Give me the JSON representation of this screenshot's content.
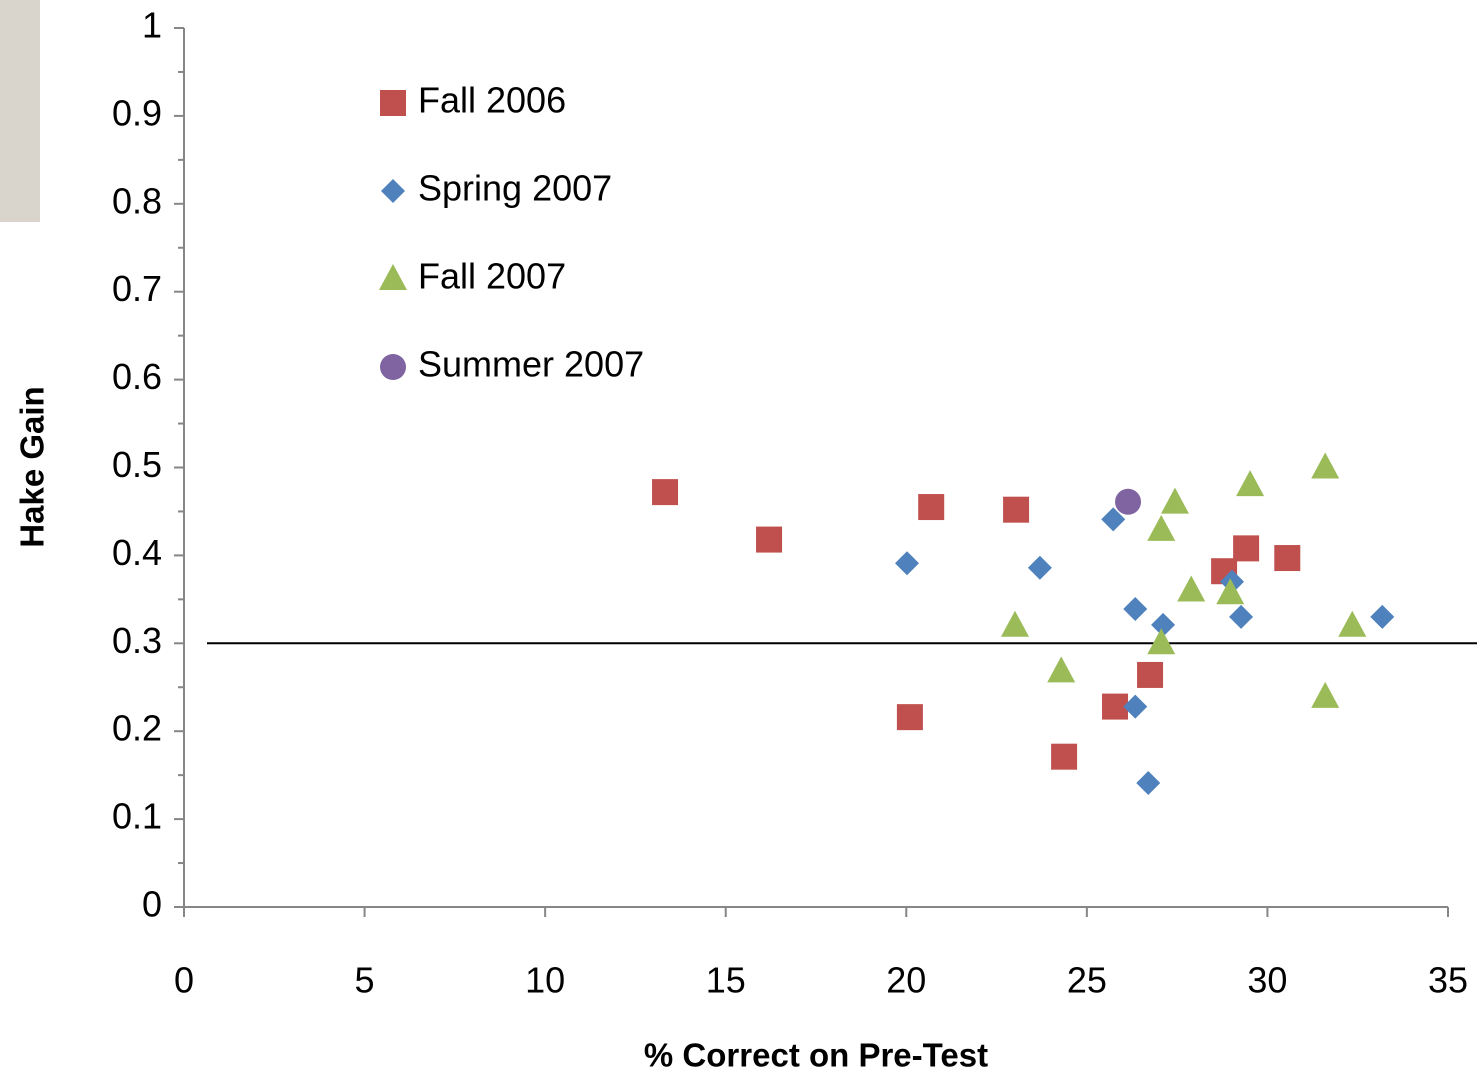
{
  "chart_data": {
    "type": "scatter",
    "xlabel": "% Correct on Pre-Test",
    "ylabel": "Hake Gain",
    "xlim": [
      0,
      35
    ],
    "xticks": [
      0,
      5,
      10,
      15,
      20,
      25,
      30,
      35
    ],
    "ylim": [
      0,
      1
    ],
    "yticks": [
      0,
      0.1,
      0.2,
      0.3,
      0.4,
      0.5,
      0.6,
      0.7,
      0.8,
      0.9,
      1
    ],
    "yminorticks": [
      0.05,
      0.15,
      0.25,
      0.35,
      0.45,
      0.55,
      0.65,
      0.75,
      0.85,
      0.95
    ],
    "hline": 0.3,
    "series": [
      {
        "name": "Fall 2006",
        "color": "#c0504d",
        "marker": "square",
        "x": [
          13.32,
          16.2,
          20.69,
          23.04,
          20.1,
          24.37,
          25.78,
          26.75,
          28.8,
          29.41,
          30.55
        ],
        "values": [
          0.472,
          0.418,
          0.455,
          0.452,
          0.216,
          0.171,
          0.228,
          0.264,
          0.382,
          0.408,
          0.397
        ]
      },
      {
        "name": "Spring 2007",
        "color": "#4f81bd",
        "marker": "diamond",
        "x": [
          20.02,
          23.7,
          25.73,
          26.34,
          27.11,
          26.34,
          26.7,
          29.02,
          29.27,
          33.18
        ],
        "values": [
          0.391,
          0.386,
          0.441,
          0.339,
          0.321,
          0.228,
          0.141,
          0.37,
          0.33,
          0.33
        ]
      },
      {
        "name": "Fall 2007",
        "color": "#9bbb59",
        "marker": "triangle",
        "x": [
          23.01,
          24.29,
          27.06,
          27.44,
          27.06,
          27.89,
          28.97,
          29.52,
          31.6,
          32.35,
          31.6
        ],
        "values": [
          0.32,
          0.268,
          0.429,
          0.46,
          0.3,
          0.36,
          0.357,
          0.48,
          0.5,
          0.32,
          0.239
        ]
      },
      {
        "name": "Summer 2007",
        "color": "#8064a2",
        "marker": "circle",
        "x": [
          26.14
        ],
        "values": [
          0.461
        ]
      }
    ]
  }
}
